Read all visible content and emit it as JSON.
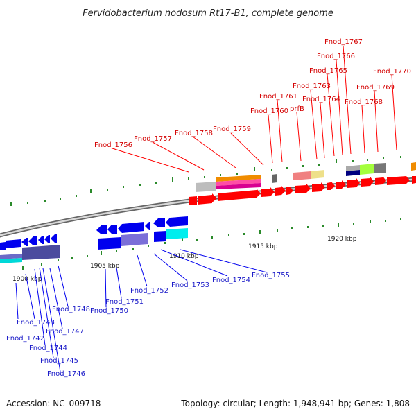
{
  "title": "Fervidobacterium nodosum Rt17-B1, complete genome",
  "footer": {
    "accession": "Accession: NC_009718",
    "summary": "Topology: circular; Length: 1,948,941 bp; Genes: 1,808"
  },
  "scale_labels": [
    "1900 kbp",
    "1905 kbp",
    "1910 kbp",
    "1915 kbp",
    "1920 kbp"
  ],
  "colors": {
    "forward_strand": "#ff0000",
    "reverse_strand": "#0000ee",
    "leader_red": "#ff0000",
    "leader_blue": "#0000ee",
    "backbone": "#888888",
    "tick": "#2a8a2a"
  },
  "top_genes": [
    "Fnod_1756",
    "Fnod_1757",
    "Fnod_1758",
    "Fnod_1759",
    "Fnod_1760",
    "Fnod_1761",
    "prfB",
    "Fnod_1763",
    "Fnod_1764",
    "Fnod_1765",
    "Fnod_1766",
    "Fnod_1767",
    "Fnod_1768",
    "Fnod_1769",
    "Fnod_1770"
  ],
  "bottom_genes": [
    "Fnod_1742",
    "Fnod_1743",
    "Fnod_1744",
    "Fnod_1745",
    "Fnod_1746",
    "Fnod_1747",
    "Fnod_1748",
    "Fnod_1750",
    "Fnod_1751",
    "Fnod_1752",
    "Fnod_1753",
    "Fnod_1754",
    "Fnod_1755"
  ]
}
